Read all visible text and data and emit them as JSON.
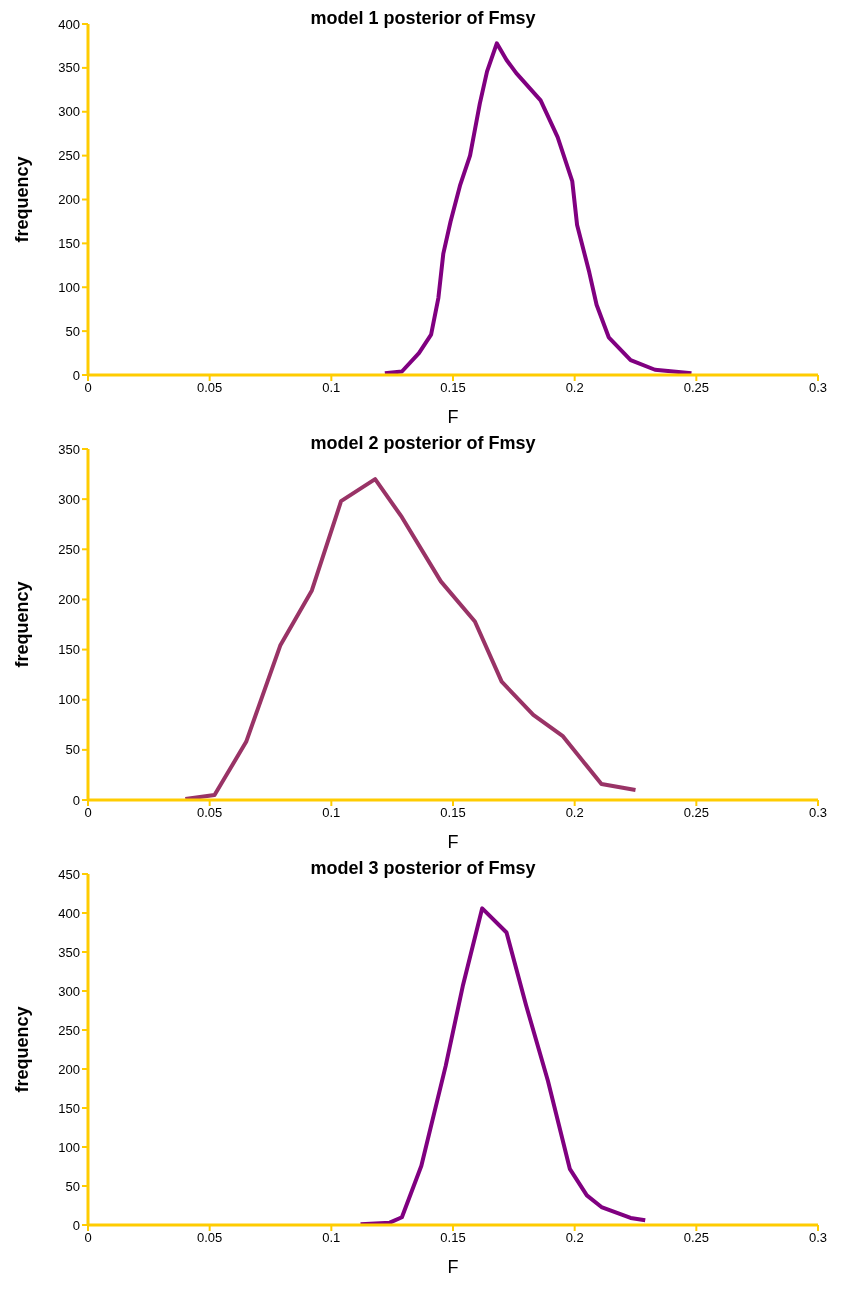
{
  "chart_data": [
    {
      "type": "line",
      "title": "model 1 posterior of Fmsy",
      "xlabel": "F",
      "ylabel": "frequency",
      "xlim": [
        0,
        0.3
      ],
      "xticks": [
        0,
        0.05,
        0.1,
        0.15,
        0.2,
        0.25,
        0.3
      ],
      "ylim": [
        0,
        400
      ],
      "yticks": [
        0,
        50,
        100,
        150,
        200,
        250,
        300,
        350,
        400
      ],
      "grid": false,
      "legend": false,
      "marker": "none",
      "line_style": "solid",
      "series": [
        {
          "color": "#800080",
          "x": [
            0.122,
            0.129,
            0.136,
            0.141,
            0.144,
            0.146,
            0.149,
            0.153,
            0.157,
            0.161,
            0.164,
            0.168,
            0.172,
            0.176,
            0.186,
            0.193,
            0.199,
            0.201,
            0.206,
            0.209,
            0.214,
            0.223,
            0.233,
            0.248
          ],
          "values": [
            2,
            4,
            25,
            46,
            88,
            138,
            175,
            217,
            250,
            309,
            346,
            378,
            359,
            344,
            313,
            271,
            221,
            171,
            117,
            80,
            43,
            17,
            6,
            2
          ]
        }
      ]
    },
    {
      "type": "line",
      "title": "model 2 posterior of Fmsy",
      "xlabel": "F",
      "ylabel": "frequency",
      "xlim": [
        0,
        0.3
      ],
      "xticks": [
        0,
        0.05,
        0.1,
        0.15,
        0.2,
        0.25,
        0.3
      ],
      "ylim": [
        0,
        350
      ],
      "yticks": [
        0,
        50,
        100,
        150,
        200,
        250,
        300,
        350
      ],
      "grid": false,
      "legend": false,
      "marker": "none",
      "line_style": "solid",
      "series": [
        {
          "color": "#993366",
          "x": [
            0.04,
            0.052,
            0.065,
            0.079,
            0.092,
            0.104,
            0.118,
            0.129,
            0.145,
            0.159,
            0.17,
            0.183,
            0.195,
            0.204,
            0.211,
            0.225
          ],
          "values": [
            1,
            5,
            58,
            154,
            209,
            298,
            320,
            282,
            218,
            178,
            118,
            85,
            64,
            37,
            16,
            10
          ]
        }
      ]
    },
    {
      "type": "line",
      "title": "model 3 posterior of Fmsy",
      "xlabel": "F",
      "ylabel": "frequency",
      "xlim": [
        0,
        0.3
      ],
      "xticks": [
        0,
        0.05,
        0.1,
        0.15,
        0.2,
        0.25,
        0.3
      ],
      "ylim": [
        0,
        450
      ],
      "yticks": [
        0,
        50,
        100,
        150,
        200,
        250,
        300,
        350,
        400,
        450
      ],
      "grid": false,
      "legend": false,
      "marker": "none",
      "line_style": "solid",
      "series": [
        {
          "color": "#800080",
          "x": [
            0.112,
            0.124,
            0.129,
            0.137,
            0.147,
            0.154,
            0.162,
            0.172,
            0.18,
            0.189,
            0.198,
            0.205,
            0.211,
            0.223,
            0.229
          ],
          "values": [
            1,
            3,
            10,
            76,
            204,
            306,
            406,
            375,
            282,
            185,
            72,
            38,
            23,
            9,
            6
          ]
        }
      ]
    }
  ]
}
